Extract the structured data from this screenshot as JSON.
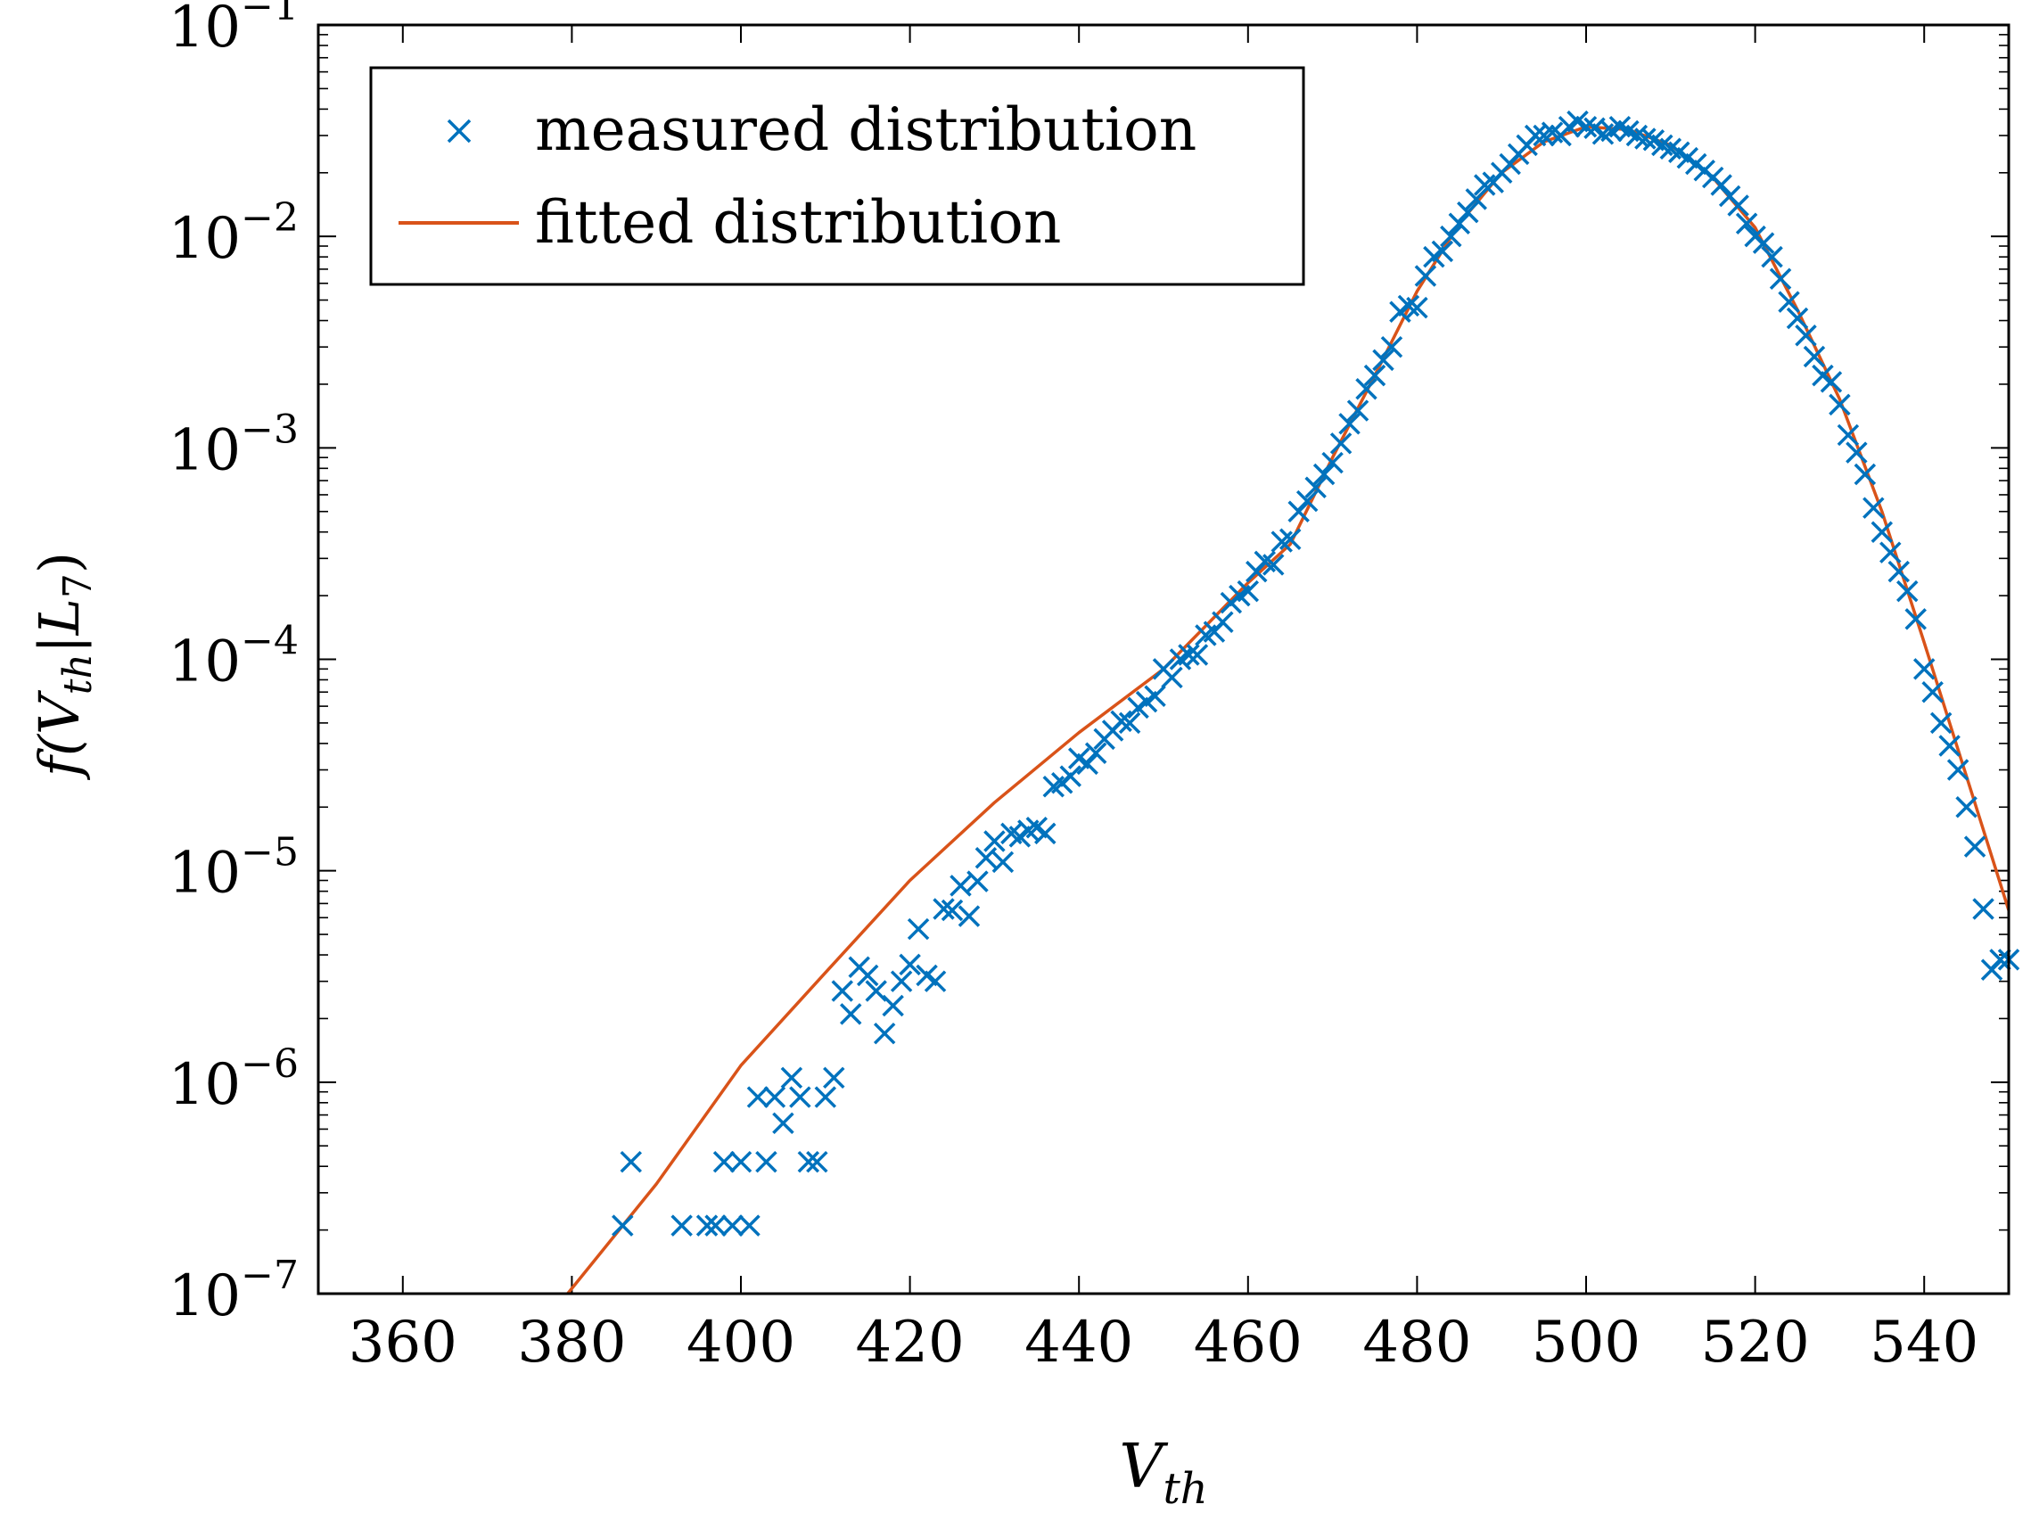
{
  "chart_data": {
    "type": "scatter",
    "title": "",
    "xlabel": {
      "base": "V",
      "sub": "th"
    },
    "ylabel": {
      "prefix": "f(",
      "var": "V",
      "sub": "th",
      "mid": "|",
      "var2": "L",
      "sub2": "7",
      "suffix": ")"
    },
    "xlim": [
      350,
      550
    ],
    "ylim": [
      1e-07,
      0.1
    ],
    "yscale": "log",
    "xticks": [
      {
        "value": 360,
        "label": "360"
      },
      {
        "value": 380,
        "label": "380"
      },
      {
        "value": 400,
        "label": "400"
      },
      {
        "value": 420,
        "label": "420"
      },
      {
        "value": 440,
        "label": "440"
      },
      {
        "value": 460,
        "label": "460"
      },
      {
        "value": 480,
        "label": "480"
      },
      {
        "value": 500,
        "label": "500"
      },
      {
        "value": 520,
        "label": "520"
      },
      {
        "value": 540,
        "label": "540"
      }
    ],
    "yticks": [
      {
        "value": 1e-07,
        "base": "10",
        "exp": "−7"
      },
      {
        "value": 1e-06,
        "base": "10",
        "exp": "−6"
      },
      {
        "value": 1e-05,
        "base": "10",
        "exp": "−5"
      },
      {
        "value": 0.0001,
        "base": "10",
        "exp": "−4"
      },
      {
        "value": 0.001,
        "base": "10",
        "exp": "−3"
      },
      {
        "value": 0.01,
        "base": "10",
        "exp": "−2"
      },
      {
        "value": 0.1,
        "base": "10",
        "exp": "−1"
      }
    ],
    "legend": {
      "placement": "top-left",
      "entries": [
        {
          "label": "measured distribution",
          "marker": "x",
          "color": "#0072BD"
        },
        {
          "label": "fitted distribution",
          "marker": "line",
          "color": "#D95319"
        }
      ]
    },
    "series": [
      {
        "name": "measured distribution",
        "kind": "markers",
        "color": "#0072BD",
        "points": [
          [
            386,
            2.1e-07
          ],
          [
            387,
            4.2e-07
          ],
          [
            393,
            2.1e-07
          ],
          [
            396,
            2.1e-07
          ],
          [
            397,
            2.1e-07
          ],
          [
            398,
            4.2e-07
          ],
          [
            399,
            2.1e-07
          ],
          [
            400,
            4.2e-07
          ],
          [
            401,
            2.1e-07
          ],
          [
            402,
            8.5e-07
          ],
          [
            403,
            4.2e-07
          ],
          [
            404,
            8.5e-07
          ],
          [
            405,
            6.4e-07
          ],
          [
            406,
            1.05e-06
          ],
          [
            407,
            8.5e-07
          ],
          [
            408,
            4.2e-07
          ],
          [
            409,
            4.2e-07
          ],
          [
            410,
            8.5e-07
          ],
          [
            411,
            1.05e-06
          ],
          [
            412,
            2.7e-06
          ],
          [
            413,
            2.1e-06
          ],
          [
            414,
            3.5e-06
          ],
          [
            415,
            3.2e-06
          ],
          [
            416,
            2.7e-06
          ],
          [
            417,
            1.7e-06
          ],
          [
            418,
            2.3e-06
          ],
          [
            419,
            3e-06
          ],
          [
            420,
            3.6e-06
          ],
          [
            421,
            5.3e-06
          ],
          [
            422,
            3.2e-06
          ],
          [
            423,
            3e-06
          ],
          [
            424,
            6.6e-06
          ],
          [
            425,
            6.5e-06
          ],
          [
            426,
            8.5e-06
          ],
          [
            427,
            6.1e-06
          ],
          [
            428,
            8.9e-06
          ],
          [
            429,
            1.15e-05
          ],
          [
            430,
            1.38e-05
          ],
          [
            431,
            1.1e-05
          ],
          [
            432,
            1.5e-05
          ],
          [
            433,
            1.45e-05
          ],
          [
            434,
            1.55e-05
          ],
          [
            435,
            1.6e-05
          ],
          [
            436,
            1.5e-05
          ],
          [
            437,
            2.5e-05
          ],
          [
            438,
            2.6e-05
          ],
          [
            439,
            2.8e-05
          ],
          [
            440,
            3.4e-05
          ],
          [
            441,
            3.2e-05
          ],
          [
            442,
            3.6e-05
          ],
          [
            443,
            4.2e-05
          ],
          [
            444,
            4.6e-05
          ],
          [
            445,
            5.1e-05
          ],
          [
            446,
            5e-05
          ],
          [
            447,
            5.9e-05
          ],
          [
            448,
            6.3e-05
          ],
          [
            449,
            6.7e-05
          ],
          [
            450,
            9e-05
          ],
          [
            451,
            8.2e-05
          ],
          [
            452,
            0.0001
          ],
          [
            453,
            0.000105
          ],
          [
            454,
            0.000105
          ],
          [
            455,
            0.00013
          ],
          [
            456,
            0.000135
          ],
          [
            457,
            0.00015
          ],
          [
            458,
            0.000185
          ],
          [
            459,
            0.0002
          ],
          [
            460,
            0.00021
          ],
          [
            461,
            0.00026
          ],
          [
            462,
            0.00029
          ],
          [
            463,
            0.00028
          ],
          [
            464,
            0.00036
          ],
          [
            465,
            0.00037
          ],
          [
            466,
            0.0005
          ],
          [
            467,
            0.00056
          ],
          [
            468,
            0.00065
          ],
          [
            469,
            0.00075
          ],
          [
            470,
            0.00085
          ],
          [
            471,
            0.00105
          ],
          [
            472,
            0.0013
          ],
          [
            473,
            0.0015
          ],
          [
            474,
            0.0019
          ],
          [
            475,
            0.0022
          ],
          [
            476,
            0.0026
          ],
          [
            477,
            0.003
          ],
          [
            478,
            0.0044
          ],
          [
            479,
            0.0047
          ],
          [
            480,
            0.0046
          ],
          [
            481,
            0.0065
          ],
          [
            482,
            0.008
          ],
          [
            483,
            0.0085
          ],
          [
            484,
            0.01
          ],
          [
            485,
            0.0115
          ],
          [
            486,
            0.013
          ],
          [
            487,
            0.015
          ],
          [
            488,
            0.0175
          ],
          [
            489,
            0.018
          ],
          [
            490,
            0.02
          ],
          [
            491,
            0.022
          ],
          [
            492,
            0.0245
          ],
          [
            493,
            0.027
          ],
          [
            494,
            0.03
          ],
          [
            495,
            0.03
          ],
          [
            496,
            0.031
          ],
          [
            497,
            0.03
          ],
          [
            498,
            0.033
          ],
          [
            499,
            0.035
          ],
          [
            500,
            0.033
          ],
          [
            501,
            0.0325
          ],
          [
            502,
            0.0305
          ],
          [
            503,
            0.0315
          ],
          [
            504,
            0.033
          ],
          [
            505,
            0.0315
          ],
          [
            506,
            0.03
          ],
          [
            507,
            0.029
          ],
          [
            508,
            0.0285
          ],
          [
            509,
            0.027
          ],
          [
            510,
            0.026
          ],
          [
            511,
            0.025
          ],
          [
            512,
            0.0235
          ],
          [
            513,
            0.022
          ],
          [
            514,
            0.0205
          ],
          [
            515,
            0.019
          ],
          [
            516,
            0.0175
          ],
          [
            517,
            0.0155
          ],
          [
            518,
            0.014
          ],
          [
            519,
            0.0115
          ],
          [
            520,
            0.01
          ],
          [
            521,
            0.0093
          ],
          [
            522,
            0.008
          ],
          [
            523,
            0.0063
          ],
          [
            524,
            0.0049
          ],
          [
            525,
            0.0041
          ],
          [
            526,
            0.0034
          ],
          [
            527,
            0.0027
          ],
          [
            528,
            0.0022
          ],
          [
            529,
            0.00205
          ],
          [
            530,
            0.0016
          ],
          [
            531,
            0.00115
          ],
          [
            532,
            0.00095
          ],
          [
            533,
            0.00075
          ],
          [
            534,
            0.00052
          ],
          [
            535,
            0.0004
          ],
          [
            536,
            0.00032
          ],
          [
            537,
            0.00026
          ],
          [
            538,
            0.00021
          ],
          [
            539,
            0.000155
          ],
          [
            540,
            9e-05
          ],
          [
            541,
            7e-05
          ],
          [
            542,
            5e-05
          ],
          [
            543,
            3.9e-05
          ],
          [
            544,
            3e-05
          ],
          [
            545,
            2e-05
          ],
          [
            546,
            1.3e-05
          ],
          [
            547,
            6.6e-06
          ],
          [
            548,
            3.4e-06
          ],
          [
            549,
            3.8e-06
          ],
          [
            550,
            3.8e-06
          ]
        ]
      },
      {
        "name": "fitted distribution",
        "kind": "line",
        "color": "#D95319",
        "points": [
          [
            379.5,
            1e-07
          ],
          [
            390,
            3.3e-07
          ],
          [
            400,
            1.2e-06
          ],
          [
            410,
            3.3e-06
          ],
          [
            420,
            9e-06
          ],
          [
            430,
            2.1e-05
          ],
          [
            440,
            4.5e-05
          ],
          [
            450,
            9e-05
          ],
          [
            460,
            0.00023
          ],
          [
            465,
            0.00035
          ],
          [
            470,
            0.0009
          ],
          [
            475,
            0.0022
          ],
          [
            480,
            0.0055
          ],
          [
            485,
            0.0115
          ],
          [
            490,
            0.02
          ],
          [
            495,
            0.028
          ],
          [
            500,
            0.033
          ],
          [
            505,
            0.032
          ],
          [
            510,
            0.027
          ],
          [
            515,
            0.019
          ],
          [
            520,
            0.011
          ],
          [
            525,
            0.0045
          ],
          [
            530,
            0.0017
          ],
          [
            535,
            0.0005
          ],
          [
            540,
            0.00012
          ],
          [
            545,
            2.8e-05
          ],
          [
            550,
            6.5e-06
          ]
        ]
      }
    ]
  }
}
